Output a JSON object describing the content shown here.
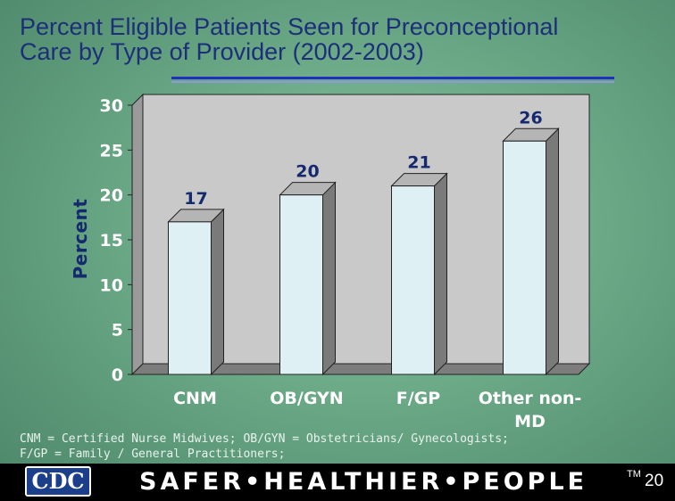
{
  "slide": {
    "title_line1": "Percent Eligible Patients Seen for Preconceptional",
    "title_line2": "Care by Type of Provider (2002-2003)",
    "footnote_line1": "CNM = Certified Nurse Midwives;  OB/GYN = Obstetricians/ Gynecologists;",
    "footnote_line2": "F/GP = Family / General Practitioners;",
    "footer": {
      "logo_text": "CDC",
      "slogan": "SAFER•HEALTHIER•PEOPLE",
      "trademark": "TM",
      "page_number": "20"
    }
  },
  "chart_data": {
    "type": "bar",
    "categories": [
      "CNM",
      "OB/GYN",
      "F/GP",
      "Other non-MD"
    ],
    "values": [
      17,
      20,
      21,
      26
    ],
    "data_labels": [
      "17",
      "20",
      "21",
      "26"
    ],
    "ylabel": "Percent",
    "xlabel": "",
    "ylim": [
      0,
      30
    ],
    "yticks": [
      "0",
      "5",
      "10",
      "15",
      "20",
      "25",
      "30"
    ],
    "grid": false,
    "legend": "none",
    "style": "3d",
    "colors": {
      "bar_front": "#dff0f5",
      "bar_side": "#7a7a7a",
      "bar_top": "#b5b5b5",
      "plot_back": "#c9c9c9",
      "plot_floor": "#7d7d7d",
      "axis_text": "#ffffff"
    }
  }
}
